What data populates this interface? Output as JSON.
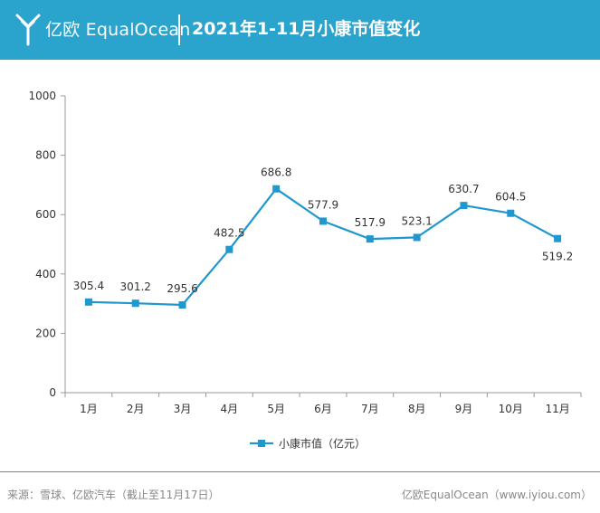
{
  "header": {
    "brand": "亿欧 EqualOcean",
    "title": "2021年1-11月小康市值变化"
  },
  "colors": {
    "header_bg": "#2aa3cd",
    "series": "#1f97cf",
    "axis": "#999999",
    "text": "#333333"
  },
  "chart_data": {
    "type": "line",
    "categories": [
      "1月",
      "2月",
      "3月",
      "4月",
      "5月",
      "6月",
      "7月",
      "8月",
      "9月",
      "10月",
      "11月"
    ],
    "series": [
      {
        "name": "小康市值（亿元）",
        "values": [
          305.4,
          301.2,
          295.6,
          482.5,
          686.8,
          577.9,
          517.9,
          523.1,
          630.7,
          604.5,
          519.2
        ]
      }
    ],
    "data_labels": [
      "305.4",
      "301.2",
      "295.6",
      "482.5",
      "686.8",
      "577.9",
      "517.9",
      "523.1",
      "630.7",
      "604.5",
      "519.2"
    ],
    "yticks": [
      "0",
      "200",
      "400",
      "600",
      "800",
      "1000"
    ],
    "ylim": [
      0,
      1000
    ],
    "grid": false,
    "legend": "bottom-center"
  },
  "footer": {
    "source": "来源：雪球、亿欧汽车（截止至11月17日）",
    "credit": "亿欧EqualOcean（www.iyiou.com）"
  }
}
